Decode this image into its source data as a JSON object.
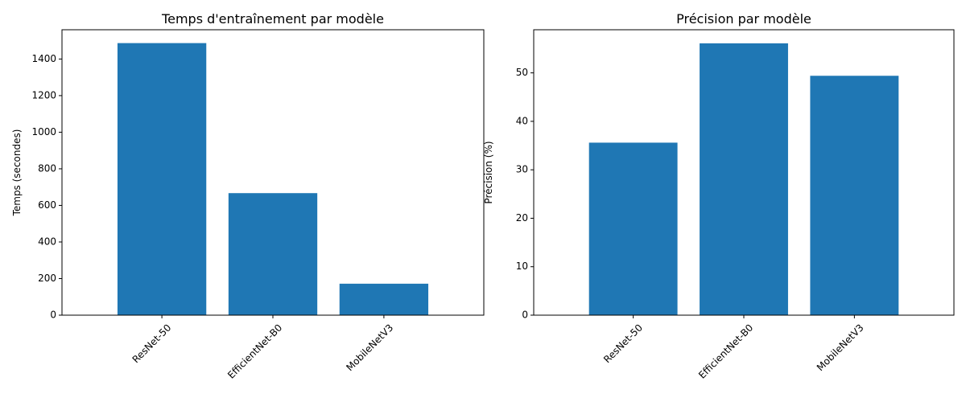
{
  "chart_data": [
    {
      "type": "bar",
      "title": "Temps d'entraînement par modèle",
      "xlabel": "",
      "ylabel": "Temps (secondes)",
      "categories": [
        "ResNet-50",
        "EfficientNet-B0",
        "MobileNetV3"
      ],
      "values": [
        1487,
        667,
        172
      ],
      "ylim": [
        0,
        1560
      ],
      "yticks": [
        0,
        200,
        400,
        600,
        800,
        1000,
        1200,
        1400
      ],
      "xtick_rotation": 45,
      "bar_color": "#1f77b4",
      "grid": false,
      "legend": false
    },
    {
      "type": "bar",
      "title": "Précision par modèle",
      "xlabel": "",
      "ylabel": "Précision (%)",
      "categories": [
        "ResNet-50",
        "EfficientNet-B0",
        "MobileNetV3"
      ],
      "values": [
        35.6,
        56.1,
        49.4
      ],
      "ylim": [
        0,
        58.9
      ],
      "yticks": [
        0,
        10,
        20,
        30,
        40,
        50
      ],
      "xtick_rotation": 45,
      "bar_color": "#1f77b4",
      "grid": false,
      "legend": false
    }
  ]
}
